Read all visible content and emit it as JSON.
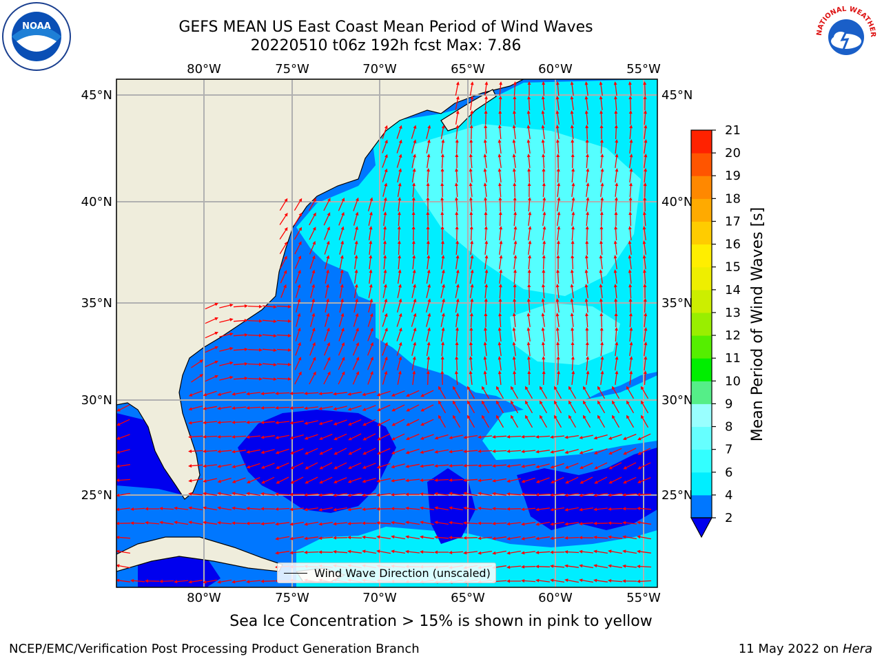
{
  "title": {
    "line1": "GEFS MEAN US East Coast Mean Period of Wind Waves",
    "line2": "20220510 t06z 192h fcst   Max: 7.86"
  },
  "logos": {
    "left": "NOAA",
    "right": "NATIONAL WEATHER SERVICE"
  },
  "map": {
    "lon_ticks": [
      "80°W",
      "75°W",
      "70°W",
      "65°W",
      "60°W",
      "55°W"
    ],
    "lat_ticks": [
      "45°N",
      "40°N",
      "35°N",
      "30°N",
      "25°N"
    ],
    "extent": {
      "lon": [
        -85,
        -54.5
      ],
      "lat": [
        20.5,
        45.8
      ]
    },
    "grid": true,
    "colors": {
      "land": "#efeddc",
      "deep": "#0000ee",
      "mid": "#0077ff",
      "cyan": "#00eeff",
      "light_cyan": "#55ffff",
      "arrow": "#ff0000",
      "grid": "#b0b0b0"
    }
  },
  "colorbar": {
    "label": "Mean Period of Wind Waves [s]",
    "ticks": [
      "2",
      "4",
      "6",
      "7",
      "8",
      "9",
      "10",
      "11",
      "12",
      "13",
      "14",
      "15",
      "16",
      "17",
      "18",
      "19",
      "20",
      "21"
    ],
    "colors": [
      "#0077ff",
      "#00eeff",
      "#33ffff",
      "#66ffff",
      "#99ffff",
      "#55ee88",
      "#00ee00",
      "#55ee00",
      "#99ee00",
      "#ccee00",
      "#eeee00",
      "#ffee00",
      "#ffcc00",
      "#ffaa00",
      "#ff8800",
      "#ff5500",
      "#ff2200",
      "#ff0000"
    ],
    "extend_color": "#0000ee"
  },
  "legend": {
    "label": "Wind Wave Direction (unscaled)"
  },
  "caption": "Sea Ice Concentration > 15% is shown in pink to yellow",
  "footer": {
    "left": "NCEP/EMC/Verification Post Processing Product Generation Branch",
    "date": "11 May 2022 on",
    "machine": "Hera"
  }
}
